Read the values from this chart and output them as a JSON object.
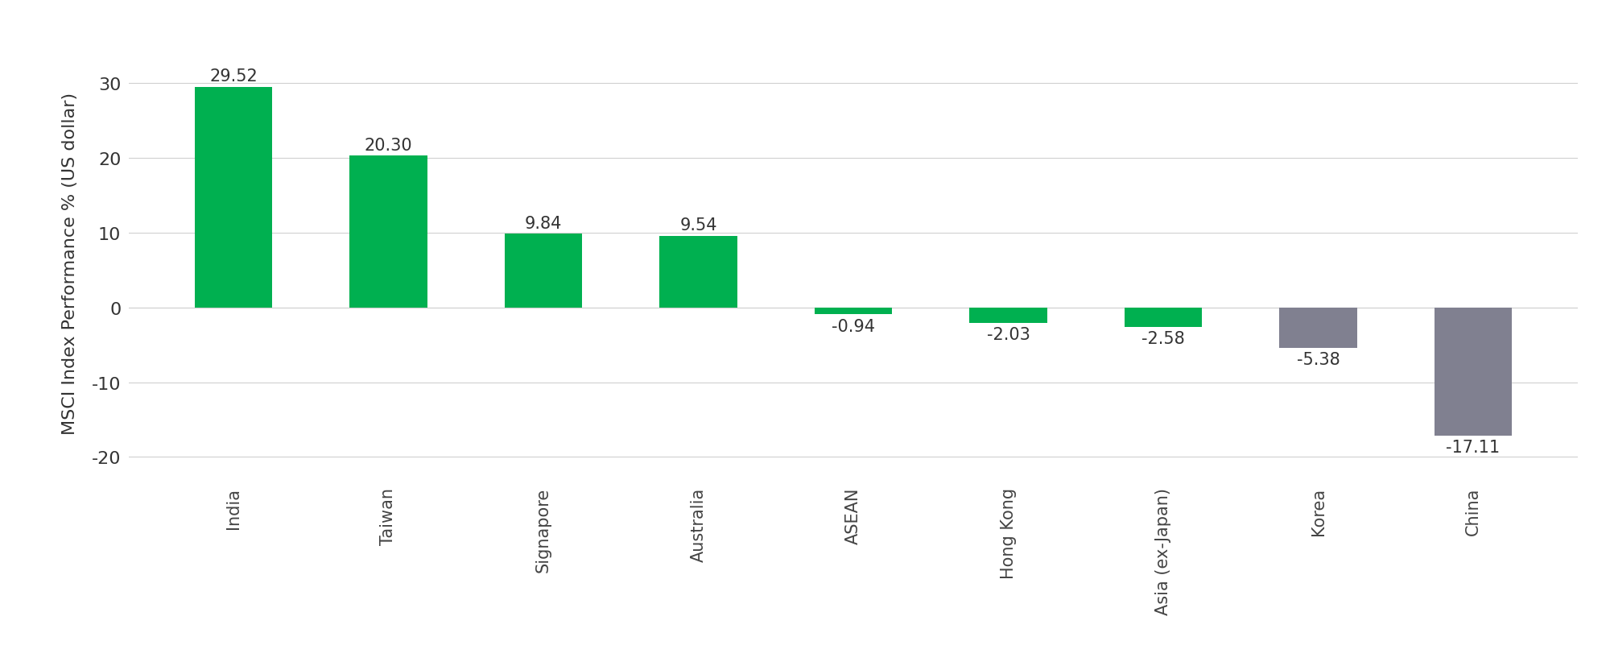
{
  "categories": [
    "India",
    "Taiwan",
    "Signapore",
    "Australia",
    "ASEAN",
    "Hong Kong",
    "Asia (ex-Japan)",
    "Korea",
    "China"
  ],
  "values": [
    29.52,
    20.3,
    9.84,
    9.54,
    -0.94,
    -2.03,
    -2.58,
    -5.38,
    -17.11
  ],
  "bar_colors": [
    "#00b050",
    "#00b050",
    "#00b050",
    "#00b050",
    "#00b050",
    "#00b050",
    "#00b050",
    "#808090",
    "#808090"
  ],
  "ylabel": "MSCI Index Performance % (US dollar)",
  "ylim": [
    -23,
    35
  ],
  "yticks": [
    -20,
    -10,
    0,
    10,
    20,
    30
  ],
  "background_color": "#ffffff",
  "grid_color": "#d0d0d0",
  "label_fontsize": 16,
  "tick_fontsize": 16,
  "value_fontsize": 15,
  "xtick_fontsize": 15,
  "bar_width": 0.5
}
